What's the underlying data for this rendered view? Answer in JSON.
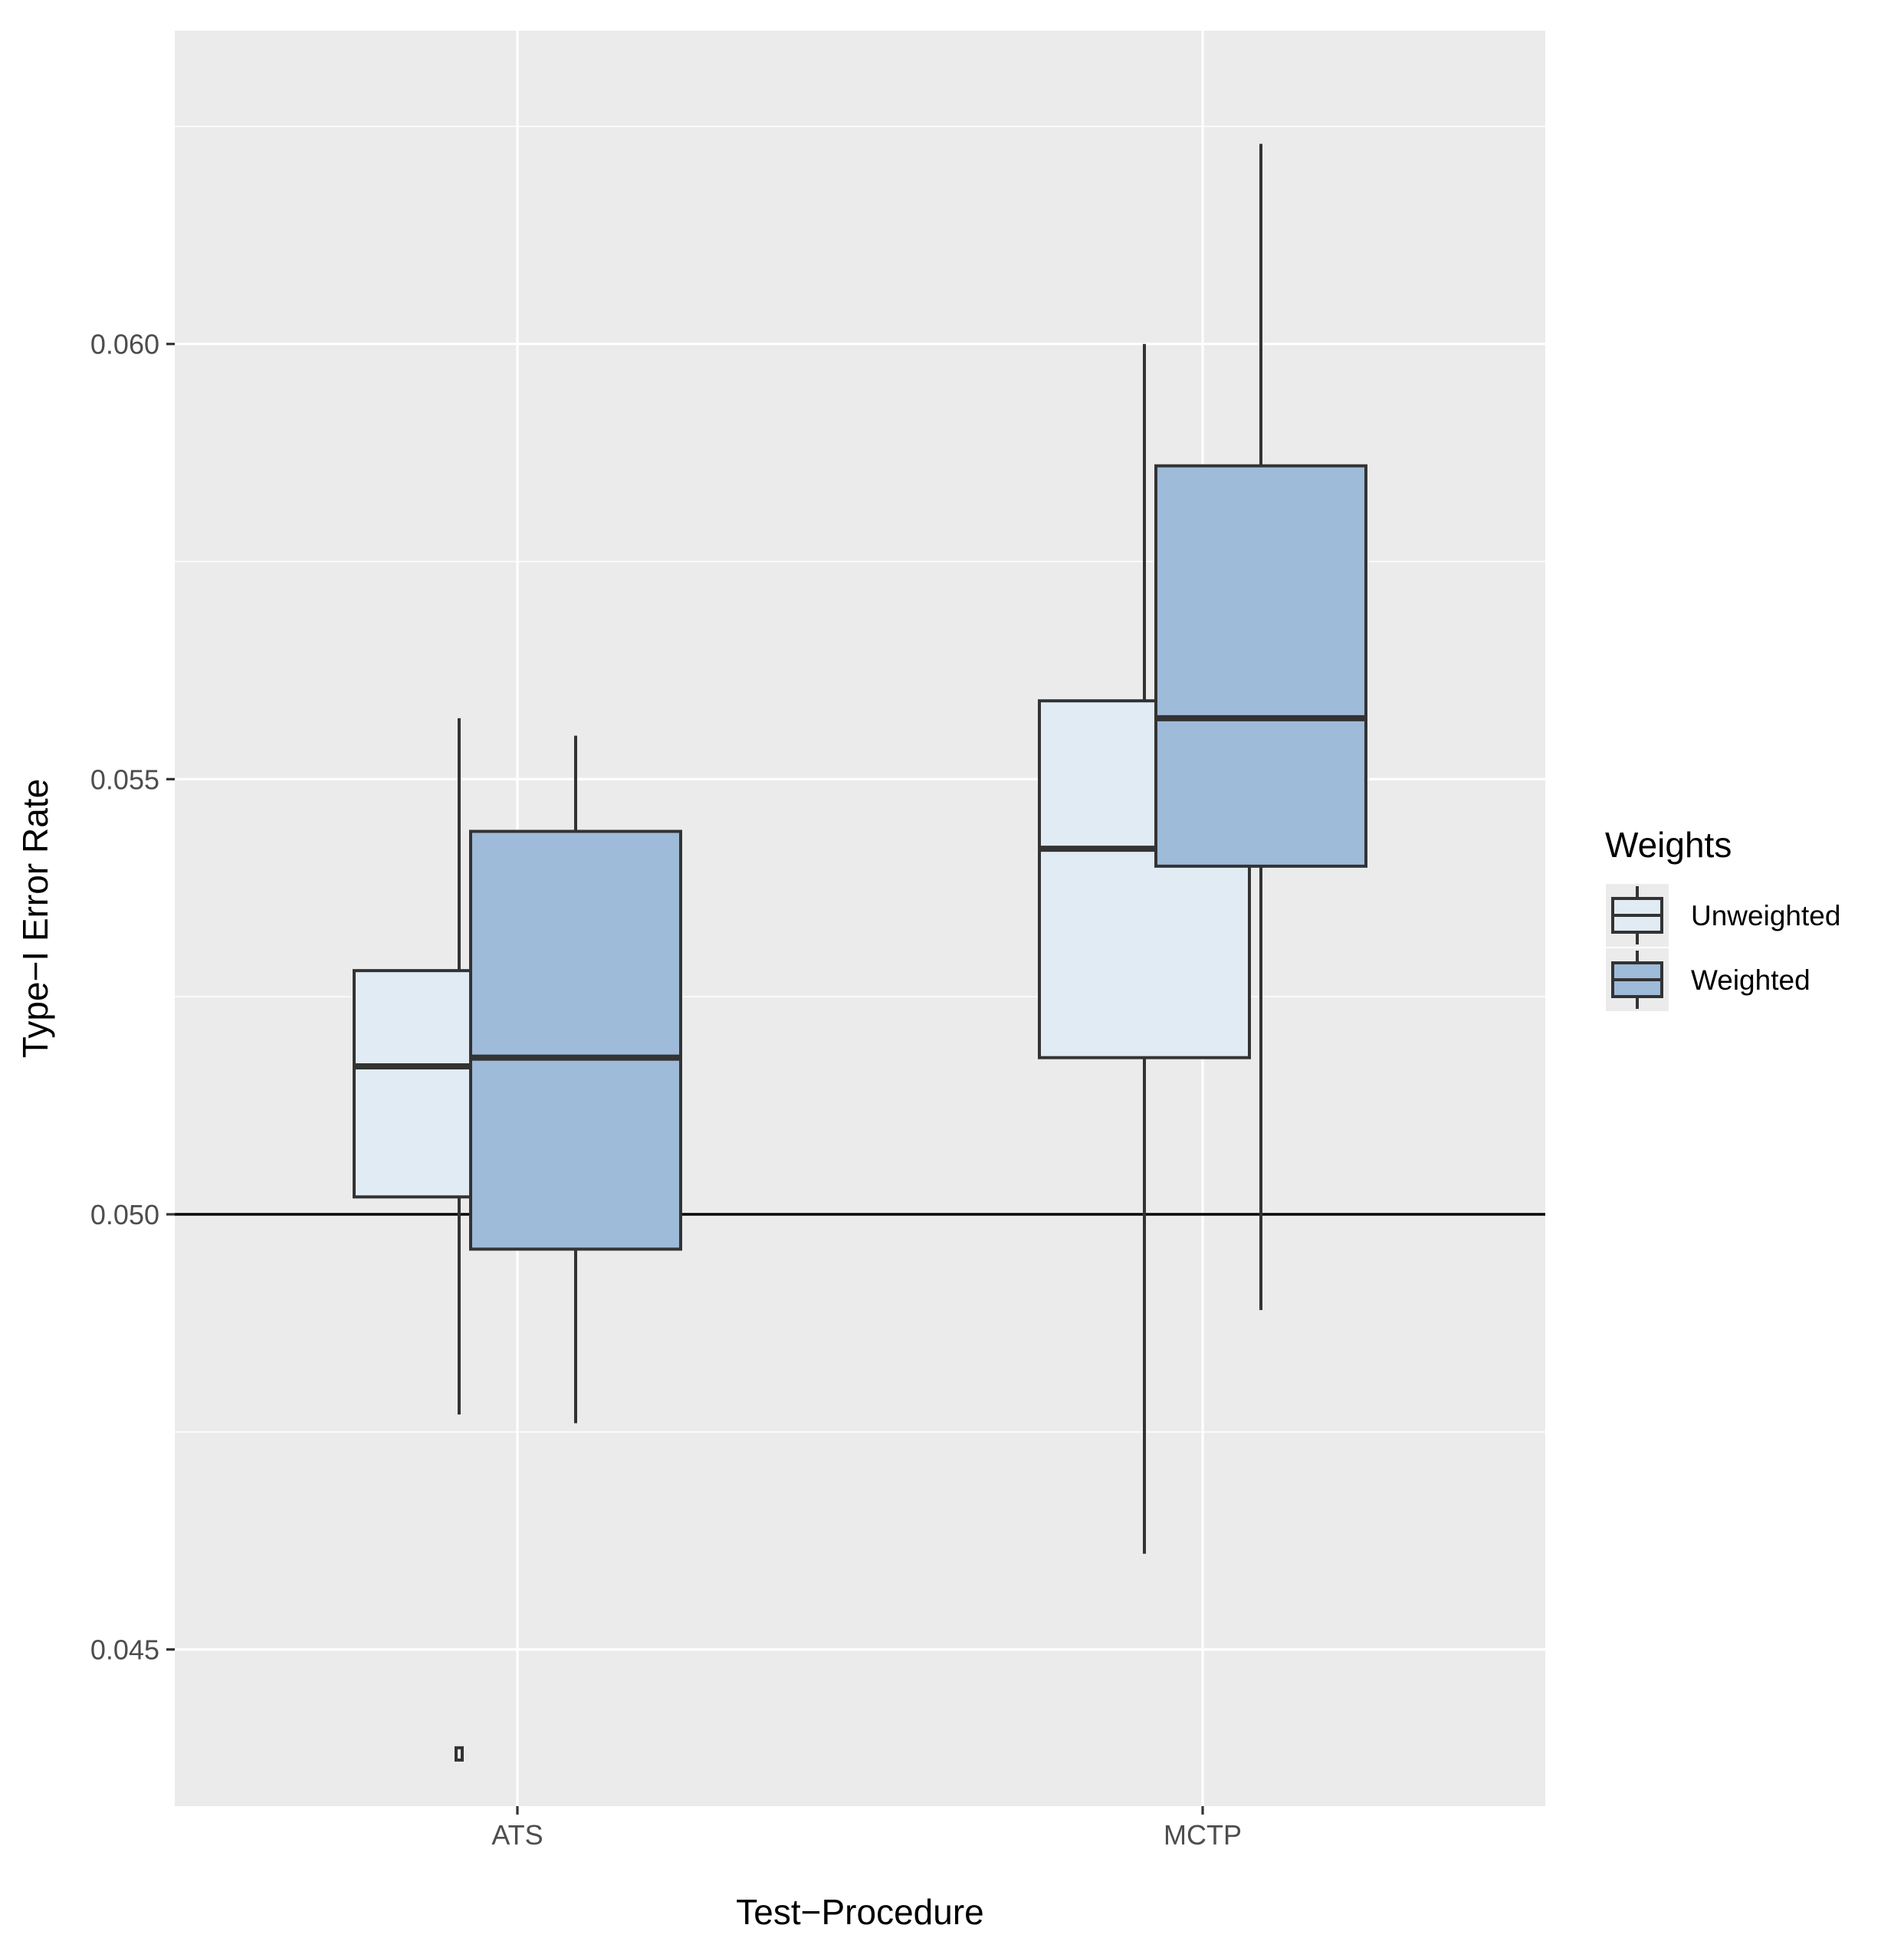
{
  "chart_data": {
    "type": "boxplot",
    "title": "",
    "xlabel": "Test−Procedure",
    "ylabel": "Type−I Error Rate",
    "categories": [
      "ATS",
      "MCTP"
    ],
    "ylim": [
      0.0432,
      0.0636
    ],
    "yticks": [
      0.045,
      0.05,
      0.055,
      0.06
    ],
    "ytick_labels": [
      "0.045",
      "0.050",
      "0.055",
      "0.060"
    ],
    "reference_line": 0.05,
    "grid": true,
    "legend": {
      "title": "Weights",
      "placement": "right",
      "entries": [
        "Unweighted",
        "Weighted"
      ]
    },
    "colors": {
      "panel": "#ebebeb",
      "grid": "#ffffff",
      "box_outline": "#333333",
      "reference_line": "#000000",
      "Unweighted": "#e0ebf3",
      "Weighted": "#9fbbda"
    },
    "series": [
      {
        "name": "Unweighted",
        "boxes": [
          {
            "category": "ATS",
            "whisker_low": 0.0477,
            "q1": 0.0502,
            "median": 0.0517,
            "q3": 0.0528,
            "whisker_high": 0.0557,
            "outliers": [
              0.0438
            ]
          },
          {
            "category": "MCTP",
            "whisker_low": 0.0461,
            "q1": 0.0518,
            "median": 0.0542,
            "q3": 0.0559,
            "whisker_high": 0.06,
            "outliers": []
          }
        ]
      },
      {
        "name": "Weighted",
        "boxes": [
          {
            "category": "ATS",
            "whisker_low": 0.0476,
            "q1": 0.0496,
            "median": 0.0518,
            "q3": 0.0544,
            "whisker_high": 0.0555,
            "outliers": []
          },
          {
            "category": "MCTP",
            "whisker_low": 0.0489,
            "q1": 0.054,
            "median": 0.0557,
            "q3": 0.0586,
            "whisker_high": 0.0623,
            "outliers": []
          }
        ]
      }
    ]
  }
}
